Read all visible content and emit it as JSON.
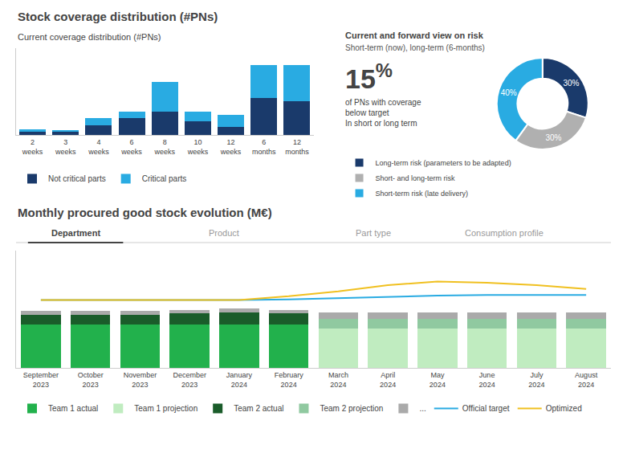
{
  "chart_data": [
    {
      "type": "bar",
      "title": "Stock coverage distribution (#PNs)",
      "subtitle": "Current coverage distribution (#PNs)",
      "categories": [
        "2\nweeks",
        "3\nweeks",
        "4\nweeks",
        "6\nweeks",
        "8\nweeks",
        "10\nweeks",
        "12\nweeks",
        "6\nmonths",
        "12\nmonths"
      ],
      "series": [
        {
          "name": "Not critical parts",
          "color": "#1a3a6b",
          "values": [
            0.5,
            0.5,
            1.5,
            2.5,
            3.5,
            2.0,
            1.2,
            5.5,
            5.0
          ]
        },
        {
          "name": "Critical parts",
          "color": "#29abe2",
          "values": [
            0.3,
            0.2,
            1.0,
            1.0,
            4.5,
            1.5,
            1.8,
            5.0,
            5.5
          ]
        }
      ],
      "stacked": true,
      "ylim": [
        0,
        13
      ],
      "tick_labels": "x",
      "grid": false,
      "legend": "bottom"
    },
    {
      "type": "pie",
      "title": "Current and forward view on risk",
      "subtitle": "Short-term (now), long-term (6-months)",
      "annotations": [
        "15",
        "%",
        "of PNs with coverage",
        "below target",
        "In short or long term"
      ],
      "categories": [
        "Long-term risk (parameters to be adapted)",
        "Short- and long-term risk",
        "Short-term risk (late delivery)"
      ],
      "values": [
        30,
        30,
        40
      ],
      "value_labels": [
        "30%",
        "30%",
        "40%"
      ],
      "colors": [
        "#1a3a6b",
        "#b0b0b0",
        "#29abe2"
      ],
      "data_labels": true,
      "legend": "bottom"
    },
    {
      "type": "bar",
      "title": "Monthly procured good stock evolution (M€)",
      "annotations": [
        "Department",
        "Product",
        "Part type",
        "Consumption profile"
      ],
      "categories": [
        "September\n2023",
        "October\n2023",
        "November\n2023",
        "December\n2023",
        "January\n2024",
        "February\n2024",
        "March\n2024",
        "April\n2024",
        "May\n2024",
        "June\n2024",
        "July\n2024",
        "August\n2024"
      ],
      "series": [
        {
          "name": "Team 1 actual",
          "type": "bar",
          "color": "#22b14c",
          "values": [
            3.5,
            3.5,
            3.5,
            3.5,
            3.5,
            3.5,
            0.0,
            0.0,
            0.0,
            0.0,
            0.0,
            0.0
          ]
        },
        {
          "name": "Team 1 projection",
          "type": "bar",
          "color": "#c0ecc0",
          "values": [
            0.0,
            0.0,
            0.0,
            0.0,
            0.0,
            0.0,
            3.2,
            3.2,
            3.2,
            3.2,
            3.2,
            3.2
          ]
        },
        {
          "name": "Team 2 actual",
          "type": "bar",
          "color": "#1a5c2a",
          "values": [
            0.8,
            0.8,
            0.8,
            0.9,
            1.0,
            0.9,
            0.0,
            0.0,
            0.0,
            0.0,
            0.0,
            0.0
          ]
        },
        {
          "name": "Team 2 projection",
          "type": "bar",
          "color": "#90c9a0",
          "values": [
            0.0,
            0.0,
            0.0,
            0.0,
            0.0,
            0.0,
            0.8,
            0.8,
            0.8,
            0.8,
            0.8,
            0.8
          ]
        },
        {
          "name": "...",
          "type": "bar",
          "color": "#aaaaaa",
          "values": [
            0.3,
            0.3,
            0.3,
            0.3,
            0.3,
            0.3,
            0.5,
            0.5,
            0.5,
            0.5,
            0.5,
            0.5
          ]
        },
        {
          "name": "Official target",
          "type": "line",
          "color": "#29abe2",
          "values": [
            5.5,
            5.5,
            5.5,
            5.5,
            5.5,
            5.55,
            5.65,
            5.75,
            5.85,
            5.9,
            5.9,
            5.9
          ]
        },
        {
          "name": "Optimized",
          "type": "line",
          "color": "#f0c020",
          "values": [
            5.5,
            5.5,
            5.5,
            5.5,
            5.5,
            5.8,
            6.2,
            6.7,
            7.0,
            6.9,
            6.7,
            6.4
          ]
        }
      ],
      "stacked": true,
      "ylim": [
        0,
        9.5
      ],
      "tick_labels": "x",
      "grid": false,
      "legend": "bottom"
    }
  ]
}
